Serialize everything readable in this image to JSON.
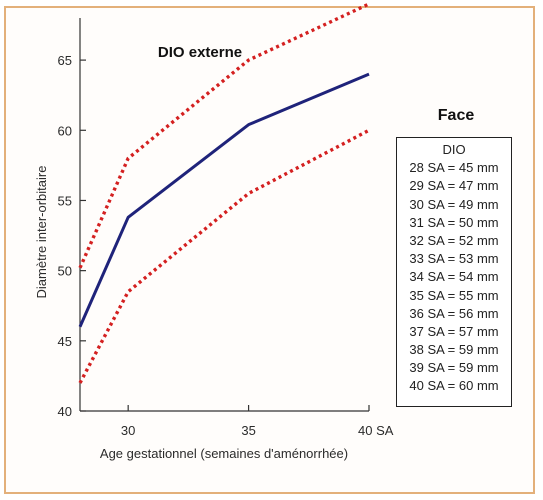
{
  "chart_data": {
    "type": "line",
    "title": "DIO externe",
    "xlabel": "Age gestationnel (semaines d'aménorrhée)",
    "ylabel": "Diamètre inter-orbitaire",
    "xlim": [
      28,
      40
    ],
    "ylim": [
      40,
      68
    ],
    "x_ticks": [
      {
        "value": 30,
        "label": "30"
      },
      {
        "value": 35,
        "label": "35"
      },
      {
        "value": 40,
        "label": "40 SA"
      }
    ],
    "y_ticks": [
      {
        "value": 40,
        "label": "40"
      },
      {
        "value": 45,
        "label": "45"
      },
      {
        "value": 50,
        "label": "50"
      },
      {
        "value": 55,
        "label": "55"
      },
      {
        "value": 60,
        "label": "60"
      },
      {
        "value": 65,
        "label": "65"
      }
    ],
    "grid": false,
    "series": [
      {
        "style": "dotted",
        "color": "#d42020",
        "x": [
          28,
          30,
          35,
          40
        ],
        "y": [
          50.2,
          58.0,
          65.0,
          69.0
        ]
      },
      {
        "style": "solid",
        "color": "#1f237a",
        "x": [
          28,
          30,
          35,
          40
        ],
        "y": [
          46.0,
          53.8,
          60.4,
          64.0
        ]
      },
      {
        "style": "dotted",
        "color": "#d42020",
        "x": [
          28,
          30,
          35,
          40
        ],
        "y": [
          42.0,
          48.5,
          55.5,
          60.0
        ]
      }
    ]
  },
  "face_table": {
    "title": "Face",
    "header": "DIO",
    "rows": [
      "28 SA = 45 mm",
      "29 SA = 47 mm",
      "30 SA = 49 mm",
      "31 SA = 50 mm",
      "32 SA = 52 mm",
      "33 SA = 53 mm",
      "34 SA = 54 mm",
      "35 SA = 55 mm",
      "36 SA = 56 mm",
      "37 SA = 57 mm",
      "38 SA = 59 mm",
      "39 SA = 59 mm",
      "40 SA = 60 mm"
    ]
  }
}
